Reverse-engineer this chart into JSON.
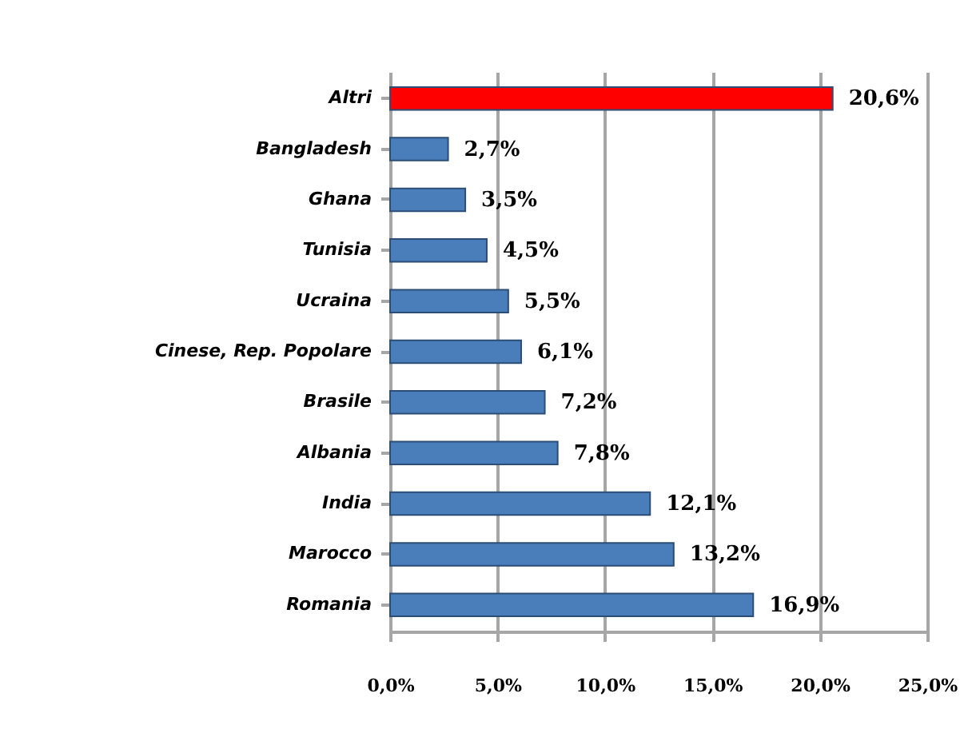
{
  "chart_data": {
    "type": "bar",
    "orientation": "horizontal",
    "categories": [
      "Altri",
      "Bangladesh",
      "Ghana",
      "Tunisia",
      "Ucraina",
      "Cinese, Rep. Popolare",
      "Brasile",
      "Albania",
      "India",
      "Marocco",
      "Romania"
    ],
    "values": [
      20.6,
      2.7,
      3.5,
      4.5,
      5.5,
      6.1,
      7.2,
      7.8,
      12.1,
      13.2,
      16.9
    ],
    "colors": [
      "#ff0000",
      "#4a7ebb",
      "#4a7ebb",
      "#4a7ebb",
      "#4a7ebb",
      "#4a7ebb",
      "#4a7ebb",
      "#4a7ebb",
      "#4a7ebb",
      "#4a7ebb",
      "#4a7ebb"
    ],
    "value_labels": [
      "20,6%",
      "2,7%",
      "3,5%",
      "4,5%",
      "5,5%",
      "6,1%",
      "7,2%",
      "7,8%",
      "12,1%",
      "13,2%",
      "16,9%"
    ],
    "xlim": [
      0,
      25
    ],
    "xticks": [
      {
        "value": 0,
        "label": "0,0%"
      },
      {
        "value": 5,
        "label": "5,0%"
      },
      {
        "value": 10,
        "label": "10,0%"
      },
      {
        "value": 15,
        "label": "15,0%"
      },
      {
        "value": 20,
        "label": "20,0%"
      },
      {
        "value": 25,
        "label": "25,0%"
      }
    ],
    "grid": "x"
  }
}
